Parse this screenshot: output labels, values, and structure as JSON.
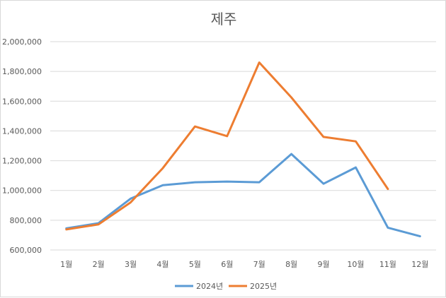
{
  "chart_data": {
    "type": "line",
    "title": "제주",
    "categories": [
      "1월",
      "2월",
      "3월",
      "4월",
      "5월",
      "6월",
      "7월",
      "8월",
      "9월",
      "10월",
      "11월",
      "12월"
    ],
    "ylim": [
      600000,
      2000000
    ],
    "yticks": [
      600000,
      800000,
      1000000,
      1200000,
      1400000,
      1600000,
      1800000,
      2000000
    ],
    "ytick_labels": [
      "600,000",
      "800,000",
      "1,000,000",
      "1,200,000",
      "1,400,000",
      "1,600,000",
      "1,800,000",
      "2,000,000"
    ],
    "grid": true,
    "legend_placement": "bottom",
    "series": [
      {
        "name": "2024년",
        "color": "#5b9bd5",
        "values": [
          745000,
          780000,
          945000,
          1035000,
          1055000,
          1060000,
          1055000,
          1245000,
          1045000,
          1155000,
          750000,
          692000
        ]
      },
      {
        "name": "2025년",
        "color": "#ed7d31",
        "values": [
          738000,
          772000,
          920000,
          1150000,
          1430000,
          1365000,
          1860000,
          1625000,
          1360000,
          1330000,
          1010000,
          null
        ]
      }
    ]
  }
}
